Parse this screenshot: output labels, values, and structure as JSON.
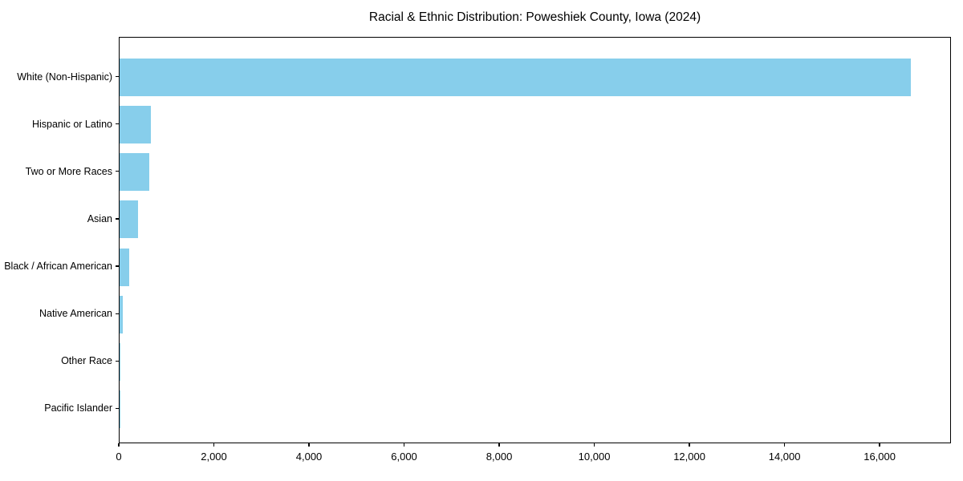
{
  "title": "Racial & Ethnic Distribution: Poweshiek County, Iowa (2024)",
  "chart_data": {
    "type": "bar",
    "orientation": "horizontal",
    "title": "Racial & Ethnic Distribution: Poweshiek County, Iowa (2024)",
    "categories": [
      "White (Non-Hispanic)",
      "Hispanic or Latino",
      "Two or More Races",
      "Asian",
      "Black / African American",
      "Native American",
      "Other Race",
      "Pacific Islander"
    ],
    "values": [
      16670,
      660,
      625,
      385,
      200,
      65,
      15,
      5
    ],
    "xlabel": "",
    "ylabel": "",
    "xlim": [
      0,
      17500
    ],
    "x_ticks": [
      0,
      2000,
      4000,
      6000,
      8000,
      10000,
      12000,
      14000,
      16000
    ],
    "x_tick_labels": [
      "0",
      "2,000",
      "4,000",
      "6,000",
      "8,000",
      "10,000",
      "12,000",
      "14,000",
      "16,000"
    ],
    "grid": false,
    "legend_position": "none",
    "sort_order": "descending"
  },
  "colors": {
    "bar": "#87CEEB",
    "text": "#000000",
    "spine": "#000000",
    "background": "#ffffff"
  }
}
